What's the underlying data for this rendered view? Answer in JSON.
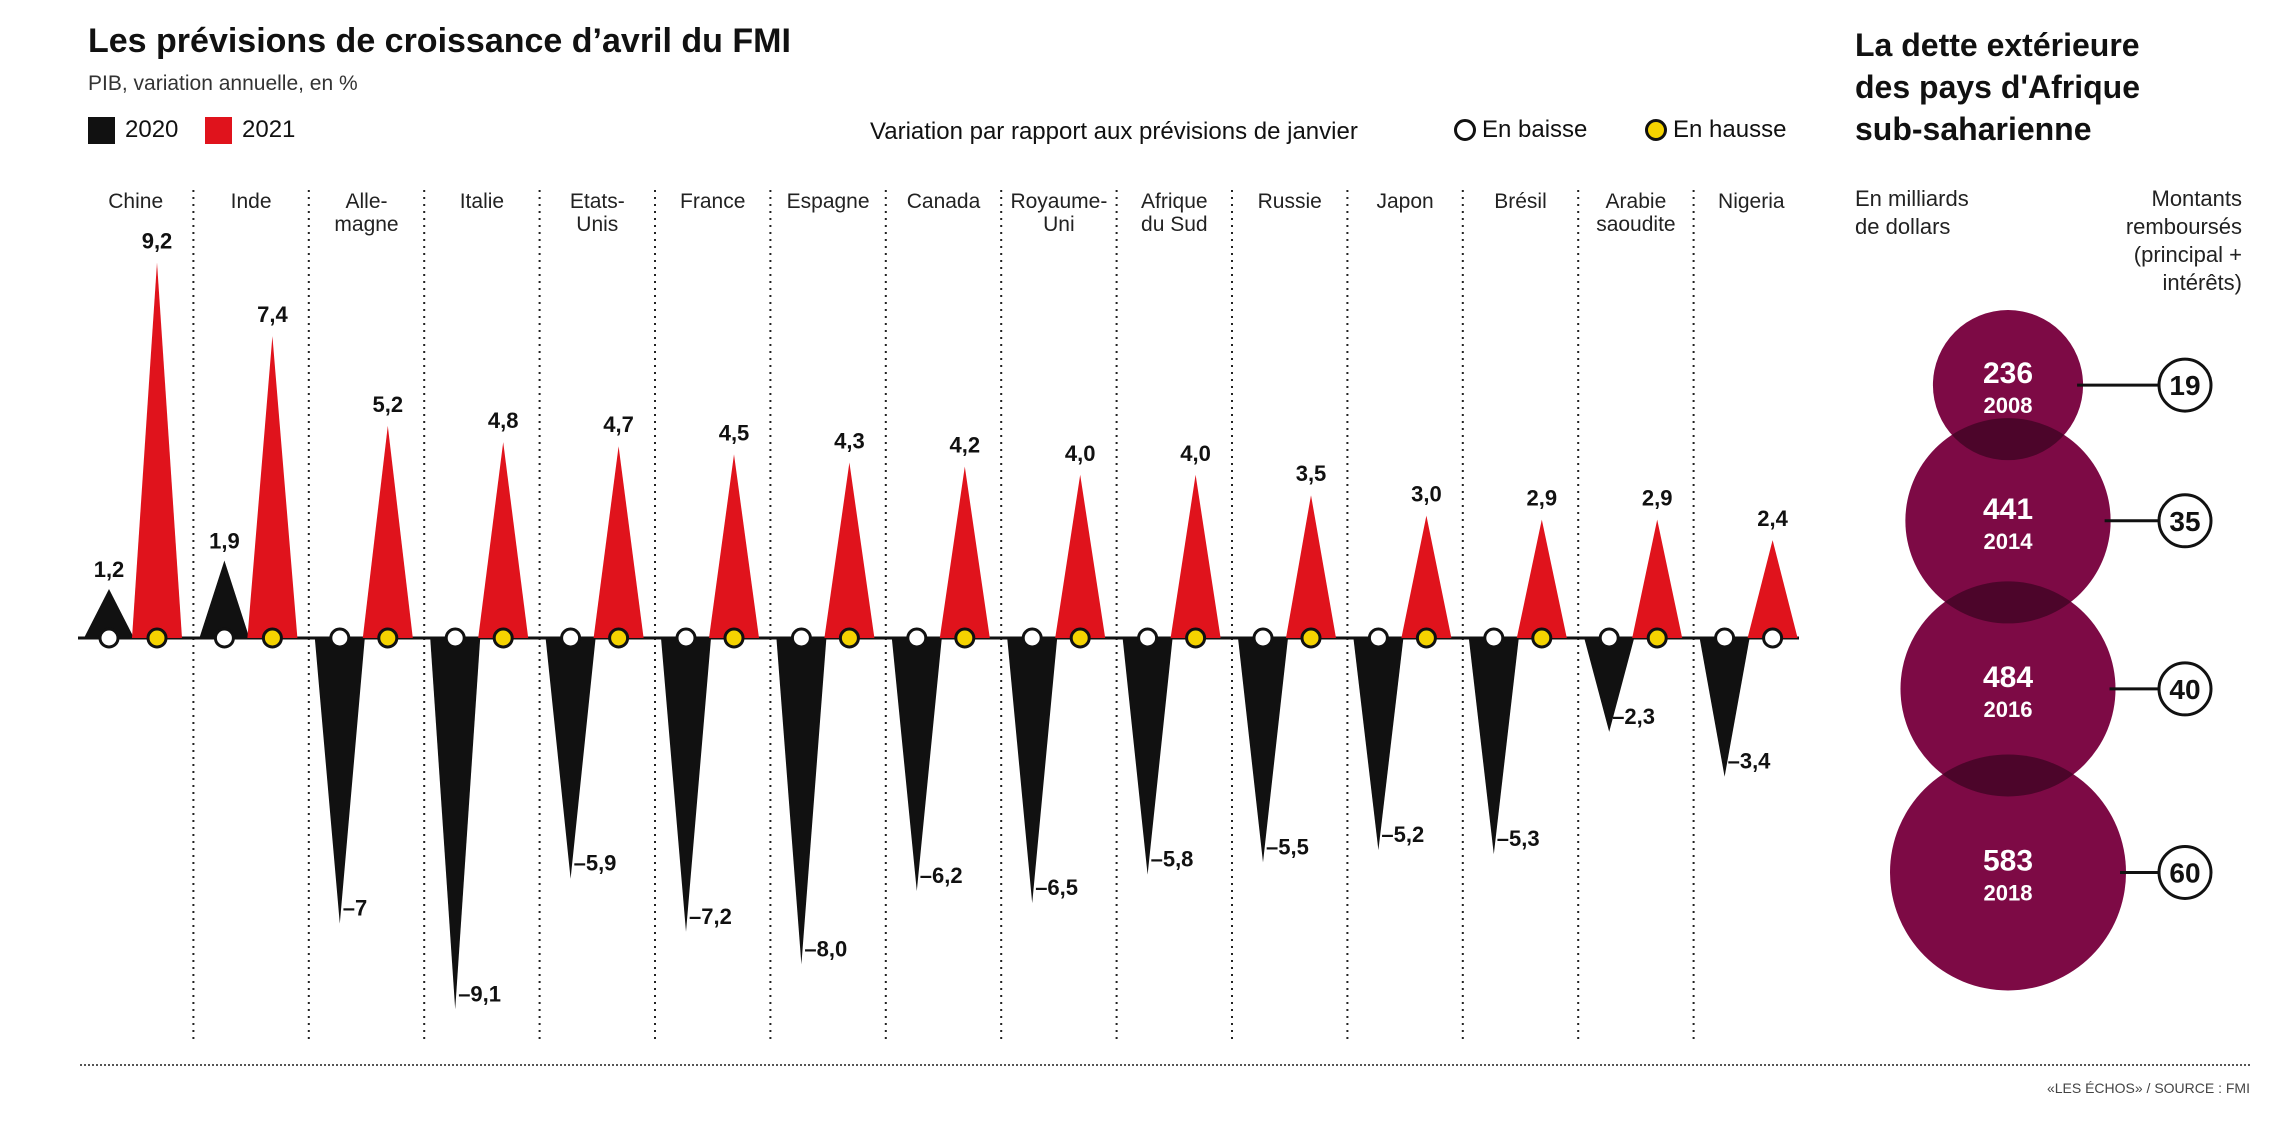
{
  "header": {
    "title": "Les prévisions de croissance d’avril du FMI",
    "subtitle": "PIB, variation annuelle, en %"
  },
  "legend": {
    "series_2020": "2020",
    "series_2021": "2021",
    "variation_label": "Variation par rapport aux prévisions de janvier",
    "down_label": "En baisse",
    "up_label": "En hausse"
  },
  "colors": {
    "y2020": "#111111",
    "y2021": "#e0131c",
    "down_dot": "#ffffff",
    "up_dot": "#f5d300",
    "bubble": "#7d0a45",
    "bubble_overlap": "#4c052a"
  },
  "chart_data": [
    {
      "type": "bar",
      "categories": [
        "Chine",
        "Inde",
        "Alle-\nmagne",
        "Italie",
        "Etats-\nUnis",
        "France",
        "Espagne",
        "Canada",
        "Royaume-\nUni",
        "Afrique\ndu Sud",
        "Russie",
        "Japon",
        "Brésil",
        "Arabie\nsaoudite",
        "Nigeria"
      ],
      "series": [
        {
          "name": "2020",
          "values": [
            1.2,
            1.9,
            -7,
            -9.1,
            -5.9,
            -7.2,
            -8.0,
            -6.2,
            -6.5,
            -5.8,
            -5.5,
            -5.2,
            -5.3,
            -2.3,
            -3.4
          ],
          "labels": [
            "1,2",
            "1,9",
            "–7",
            "–9,1",
            "–5,9",
            "–7,2",
            "–8,0",
            "–6,2",
            "–6,5",
            "–5,8",
            "–5,5",
            "–5,2",
            "–5,3",
            "–2,3",
            "–3,4"
          ],
          "variation": [
            "baisse",
            "baisse",
            "baisse",
            "baisse",
            "baisse",
            "baisse",
            "baisse",
            "baisse",
            "baisse",
            "baisse",
            "baisse",
            "baisse",
            "baisse",
            "baisse",
            "baisse"
          ]
        },
        {
          "name": "2021",
          "values": [
            9.2,
            7.4,
            5.2,
            4.8,
            4.7,
            4.5,
            4.3,
            4.2,
            4.0,
            4.0,
            3.5,
            3.0,
            2.9,
            2.9,
            2.4
          ],
          "labels": [
            "9,2",
            "7,4",
            "5,2",
            "4,8",
            "4,7",
            "4,5",
            "4,3",
            "4,2",
            "4,0",
            "4,0",
            "3,5",
            "3,0",
            "2,9",
            "2,9",
            "2,4"
          ],
          "variation": [
            "hausse",
            "hausse",
            "hausse",
            "hausse",
            "hausse",
            "hausse",
            "hausse",
            "hausse",
            "hausse",
            "hausse",
            "hausse",
            "hausse",
            "hausse",
            "hausse",
            "baisse"
          ]
        }
      ],
      "ylim": [
        -9.5,
        9.5
      ],
      "grid": false
    },
    {
      "type": "bubble",
      "title": "La dette extérieure\ndes pays d'Afrique\nsub-saharienne",
      "units_label": "En milliards\nde dollars",
      "paid_label": "Montants\nremboursés\n(principal +\nintérêts)",
      "points": [
        {
          "year": "2008",
          "debt": "236",
          "debt_value": 236,
          "paid": "19"
        },
        {
          "year": "2014",
          "debt": "441",
          "debt_value": 441,
          "paid": "35"
        },
        {
          "year": "2016",
          "debt": "484",
          "debt_value": 484,
          "paid": "40"
        },
        {
          "year": "2018",
          "debt": "583",
          "debt_value": 583,
          "paid": "60"
        }
      ]
    }
  ],
  "footer": {
    "source": "«LES ÉCHOS» / SOURCE : FMI"
  }
}
